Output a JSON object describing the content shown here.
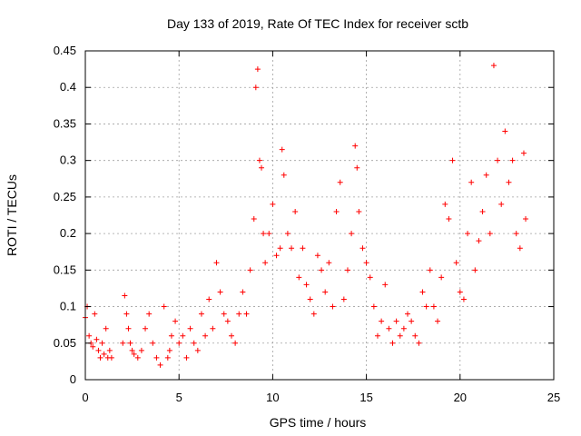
{
  "chart_data": {
    "type": "scatter",
    "title": "Day 133 of 2019, Rate Of TEC Index for receiver sctb",
    "xlabel": "GPS time / hours",
    "ylabel": "ROTI / TECUs",
    "xlim": [
      0,
      25
    ],
    "ylim": [
      0,
      0.45
    ],
    "xticks": [
      0,
      5,
      10,
      15,
      20,
      25
    ],
    "xtick_labels": [
      "0",
      "5",
      "10",
      "15",
      "20",
      "25"
    ],
    "yticks": [
      0,
      0.05,
      0.1,
      0.15,
      0.2,
      0.25,
      0.3,
      0.35,
      0.4,
      0.45
    ],
    "ytick_labels": [
      "0",
      "0.05",
      "0.1",
      "0.15",
      "0.2",
      "0.25",
      "0.3",
      "0.35",
      "0.4",
      "0.45"
    ],
    "grid": true,
    "marker": "+",
    "color": "#ff0000",
    "series": [
      {
        "name": "ROTI",
        "x": [
          0.0,
          0.1,
          0.2,
          0.3,
          0.4,
          0.5,
          0.6,
          0.7,
          0.8,
          0.9,
          1.0,
          1.1,
          1.2,
          1.3,
          1.4,
          2.0,
          2.1,
          2.2,
          2.3,
          2.4,
          2.5,
          2.6,
          2.8,
          3.0,
          3.2,
          3.4,
          3.6,
          3.8,
          4.0,
          4.2,
          4.4,
          4.5,
          4.6,
          4.8,
          5.0,
          5.2,
          5.4,
          5.6,
          5.8,
          6.0,
          6.2,
          6.4,
          6.6,
          6.8,
          7.0,
          7.2,
          7.4,
          7.6,
          7.8,
          8.0,
          8.2,
          8.4,
          8.6,
          8.8,
          9.0,
          9.1,
          9.2,
          9.3,
          9.4,
          9.5,
          9.6,
          9.8,
          10.0,
          10.2,
          10.4,
          10.5,
          10.6,
          10.8,
          11.0,
          11.2,
          11.4,
          11.6,
          11.8,
          12.0,
          12.2,
          12.4,
          12.6,
          12.8,
          13.0,
          13.2,
          13.4,
          13.6,
          13.8,
          14.0,
          14.2,
          14.4,
          14.5,
          14.6,
          14.8,
          15.0,
          15.2,
          15.4,
          15.6,
          15.8,
          16.0,
          16.2,
          16.4,
          16.6,
          16.8,
          17.0,
          17.2,
          17.4,
          17.6,
          17.8,
          18.0,
          18.2,
          18.4,
          18.6,
          18.8,
          19.0,
          19.2,
          19.4,
          19.6,
          19.8,
          20.0,
          20.2,
          20.4,
          20.6,
          20.8,
          21.0,
          21.2,
          21.4,
          21.6,
          21.8,
          22.0,
          22.2,
          22.4,
          22.6,
          22.8,
          23.0,
          23.2,
          23.4,
          23.5
        ],
        "y": [
          0.085,
          0.1,
          0.06,
          0.05,
          0.045,
          0.09,
          0.055,
          0.04,
          0.03,
          0.05,
          0.035,
          0.07,
          0.03,
          0.04,
          0.03,
          0.05,
          0.115,
          0.09,
          0.07,
          0.05,
          0.04,
          0.035,
          0.03,
          0.04,
          0.07,
          0.09,
          0.05,
          0.03,
          0.02,
          0.1,
          0.03,
          0.04,
          0.06,
          0.08,
          0.05,
          0.06,
          0.03,
          0.07,
          0.05,
          0.04,
          0.09,
          0.06,
          0.11,
          0.07,
          0.16,
          0.12,
          0.09,
          0.08,
          0.06,
          0.05,
          0.09,
          0.12,
          0.09,
          0.15,
          0.22,
          0.4,
          0.425,
          0.3,
          0.29,
          0.2,
          0.16,
          0.2,
          0.24,
          0.17,
          0.18,
          0.315,
          0.28,
          0.2,
          0.18,
          0.23,
          0.14,
          0.18,
          0.13,
          0.11,
          0.09,
          0.17,
          0.15,
          0.12,
          0.16,
          0.1,
          0.23,
          0.27,
          0.11,
          0.15,
          0.2,
          0.32,
          0.29,
          0.23,
          0.18,
          0.16,
          0.14,
          0.1,
          0.06,
          0.08,
          0.13,
          0.07,
          0.05,
          0.08,
          0.06,
          0.07,
          0.09,
          0.08,
          0.06,
          0.05,
          0.12,
          0.1,
          0.15,
          0.1,
          0.08,
          0.14,
          0.24,
          0.22,
          0.3,
          0.16,
          0.12,
          0.11,
          0.2,
          0.27,
          0.15,
          0.19,
          0.23,
          0.28,
          0.2,
          0.43,
          0.3,
          0.24,
          0.34,
          0.27,
          0.3,
          0.2,
          0.18,
          0.31,
          0.22
        ]
      }
    ]
  }
}
